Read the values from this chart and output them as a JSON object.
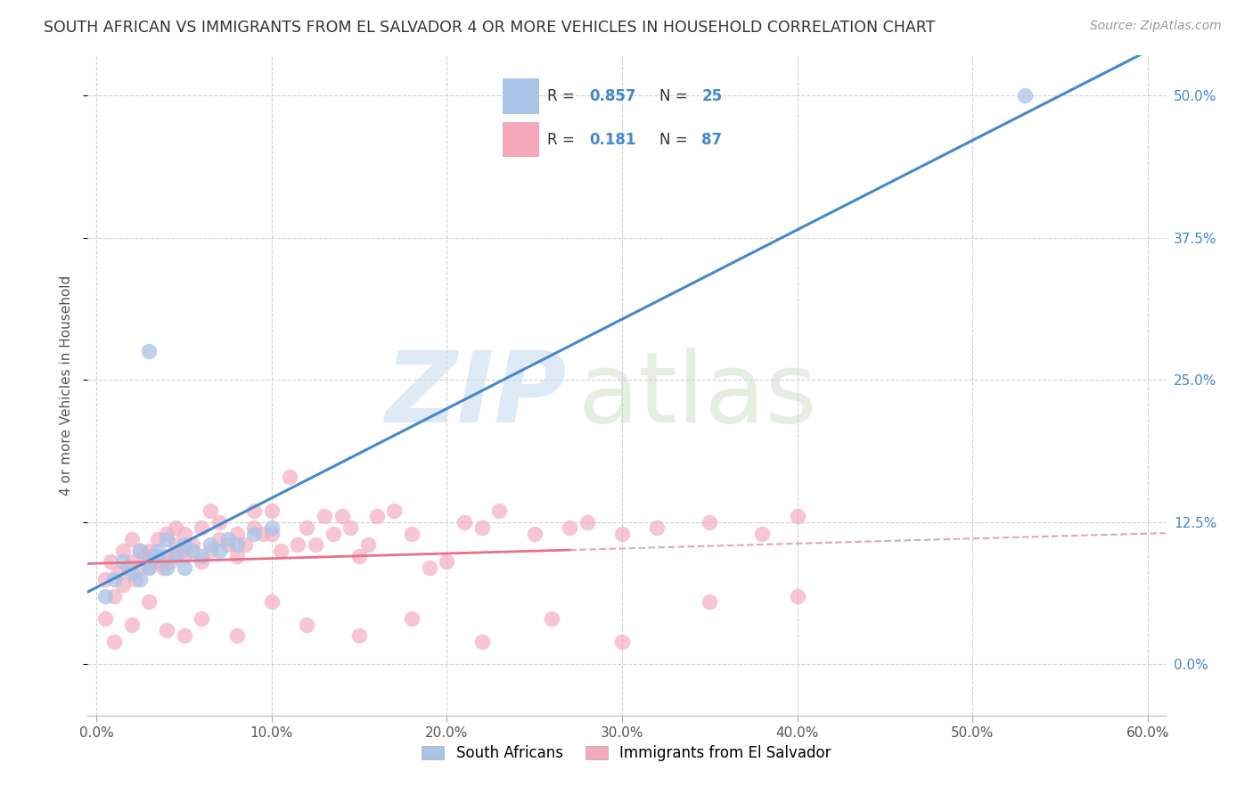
{
  "title": "SOUTH AFRICAN VS IMMIGRANTS FROM EL SALVADOR 4 OR MORE VEHICLES IN HOUSEHOLD CORRELATION CHART",
  "source": "Source: ZipAtlas.com",
  "ylabel": "4 or more Vehicles in Household",
  "xlabel_vals": [
    0.0,
    0.1,
    0.2,
    0.3,
    0.4,
    0.5,
    0.6
  ],
  "ylabel_vals": [
    0.0,
    0.125,
    0.25,
    0.375,
    0.5
  ],
  "xlim": [
    -0.005,
    0.61
  ],
  "ylim": [
    -0.045,
    0.535
  ],
  "blue_R": 0.857,
  "blue_N": 25,
  "pink_R": 0.181,
  "pink_N": 87,
  "blue_color": "#aac4e8",
  "pink_color": "#f5a8bc",
  "blue_line_color": "#4488cc",
  "pink_line_color": "#e8708a",
  "pink_dash_color": "#e0a8b8",
  "legend_label_blue": "South Africans",
  "legend_label_pink": "Immigrants from El Salvador",
  "blue_x": [
    0.005,
    0.01,
    0.015,
    0.02,
    0.025,
    0.025,
    0.03,
    0.03,
    0.035,
    0.035,
    0.04,
    0.04,
    0.045,
    0.05,
    0.05,
    0.055,
    0.06,
    0.065,
    0.07,
    0.075,
    0.08,
    0.09,
    0.1,
    0.03,
    0.53
  ],
  "blue_y": [
    0.06,
    0.075,
    0.09,
    0.08,
    0.1,
    0.075,
    0.09,
    0.085,
    0.095,
    0.1,
    0.085,
    0.11,
    0.095,
    0.085,
    0.105,
    0.1,
    0.095,
    0.105,
    0.1,
    0.11,
    0.105,
    0.115,
    0.12,
    0.275,
    0.5
  ],
  "pink_x": [
    0.005,
    0.008,
    0.01,
    0.012,
    0.015,
    0.015,
    0.018,
    0.02,
    0.02,
    0.022,
    0.025,
    0.025,
    0.028,
    0.03,
    0.03,
    0.032,
    0.035,
    0.035,
    0.038,
    0.04,
    0.04,
    0.042,
    0.045,
    0.045,
    0.048,
    0.05,
    0.05,
    0.055,
    0.06,
    0.06,
    0.065,
    0.065,
    0.07,
    0.07,
    0.075,
    0.08,
    0.08,
    0.085,
    0.09,
    0.09,
    0.095,
    0.1,
    0.1,
    0.105,
    0.11,
    0.115,
    0.12,
    0.125,
    0.13,
    0.135,
    0.14,
    0.145,
    0.15,
    0.155,
    0.16,
    0.17,
    0.18,
    0.19,
    0.2,
    0.21,
    0.22,
    0.23,
    0.25,
    0.27,
    0.28,
    0.3,
    0.32,
    0.35,
    0.38,
    0.4,
    0.005,
    0.01,
    0.02,
    0.03,
    0.04,
    0.05,
    0.06,
    0.08,
    0.1,
    0.12,
    0.15,
    0.18,
    0.22,
    0.26,
    0.3,
    0.35,
    0.4
  ],
  "pink_y": [
    0.075,
    0.09,
    0.06,
    0.08,
    0.07,
    0.1,
    0.085,
    0.09,
    0.11,
    0.075,
    0.1,
    0.085,
    0.095,
    0.085,
    0.1,
    0.095,
    0.09,
    0.11,
    0.085,
    0.095,
    0.115,
    0.09,
    0.105,
    0.12,
    0.1,
    0.095,
    0.115,
    0.105,
    0.09,
    0.12,
    0.1,
    0.135,
    0.11,
    0.125,
    0.105,
    0.095,
    0.115,
    0.105,
    0.12,
    0.135,
    0.115,
    0.115,
    0.135,
    0.1,
    0.165,
    0.105,
    0.12,
    0.105,
    0.13,
    0.115,
    0.13,
    0.12,
    0.095,
    0.105,
    0.13,
    0.135,
    0.115,
    0.085,
    0.09,
    0.125,
    0.12,
    0.135,
    0.115,
    0.12,
    0.125,
    0.115,
    0.12,
    0.125,
    0.115,
    0.13,
    0.04,
    0.02,
    0.035,
    0.055,
    0.03,
    0.025,
    0.04,
    0.025,
    0.055,
    0.035,
    0.025,
    0.04,
    0.02,
    0.04,
    0.02,
    0.055,
    0.06
  ]
}
